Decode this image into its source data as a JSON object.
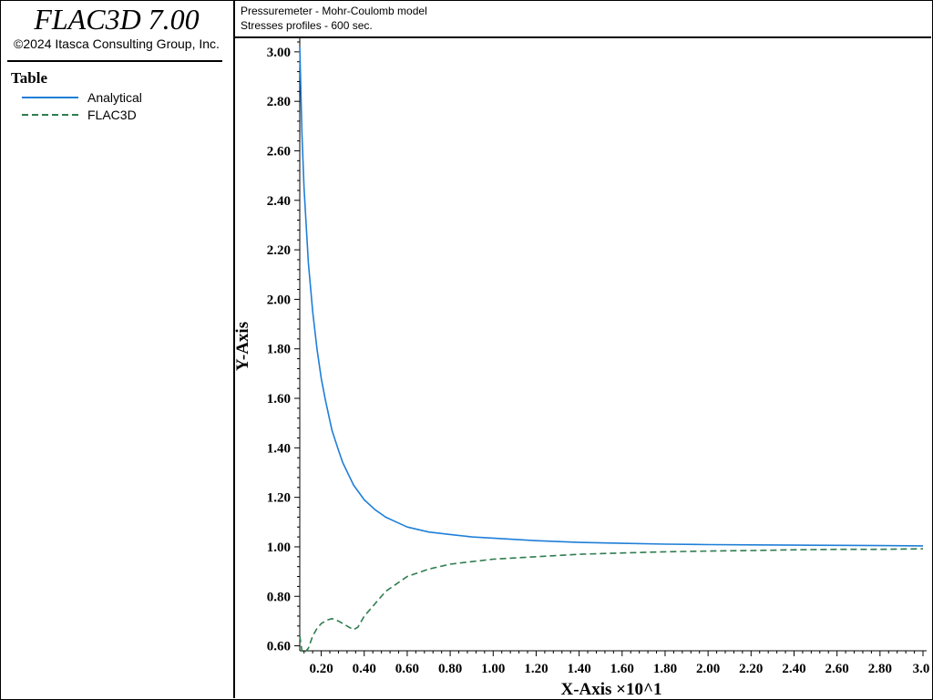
{
  "app": {
    "title": "FLAC3D 7.00",
    "copyright": "©2024 Itasca Consulting Group, Inc."
  },
  "header": {
    "line1": "Pressuremeter - Mohr-Coulomb model",
    "line2": "Stresses profiles - 600 sec."
  },
  "legend": {
    "title": "Table",
    "items": [
      {
        "label": "Analytical",
        "color": "#1f7fd8",
        "style": "solid"
      },
      {
        "label": "FLAC3D",
        "color": "#2e7d4f",
        "style": "dashed"
      }
    ]
  },
  "chart_data": {
    "type": "line",
    "xlabel": "X-Axis ×10^1",
    "ylabel": "Y-Axis",
    "xlim": [
      0.1,
      3.0
    ],
    "ylim": [
      0.58,
      3.04
    ],
    "xticks": [
      "0.20",
      "0.40",
      "0.60",
      "0.80",
      "1.00",
      "1.20",
      "1.40",
      "1.60",
      "1.80",
      "2.00",
      "2.20",
      "2.40",
      "2.60",
      "2.80",
      "3.0"
    ],
    "yticks": [
      "0.60",
      "0.80",
      "1.00",
      "1.20",
      "1.40",
      "1.60",
      "1.80",
      "2.00",
      "2.20",
      "2.40",
      "2.60",
      "2.80",
      "3.00"
    ],
    "grid": false,
    "legend_position": "left-panel",
    "series": [
      {
        "name": "Analytical",
        "color": "#1f7fd8",
        "style": "solid",
        "x": [
          0.1,
          0.11,
          0.12,
          0.14,
          0.16,
          0.18,
          0.2,
          0.22,
          0.25,
          0.28,
          0.3,
          0.35,
          0.4,
          0.45,
          0.5,
          0.55,
          0.6,
          0.7,
          0.8,
          0.9,
          1.0,
          1.2,
          1.4,
          1.6,
          1.8,
          2.0,
          2.2,
          2.4,
          2.6,
          2.8,
          3.0
        ],
        "y": [
          3.02,
          2.67,
          2.45,
          2.15,
          1.95,
          1.8,
          1.68,
          1.59,
          1.47,
          1.39,
          1.34,
          1.25,
          1.19,
          1.15,
          1.12,
          1.1,
          1.08,
          1.06,
          1.05,
          1.04,
          1.035,
          1.025,
          1.018,
          1.014,
          1.011,
          1.009,
          1.008,
          1.007,
          1.006,
          1.005,
          1.004
        ]
      },
      {
        "name": "FLAC3D",
        "color": "#2e7d4f",
        "style": "dashed",
        "x": [
          0.1,
          0.11,
          0.12,
          0.14,
          0.16,
          0.18,
          0.2,
          0.23,
          0.25,
          0.28,
          0.3,
          0.33,
          0.35,
          0.37,
          0.4,
          0.45,
          0.5,
          0.55,
          0.6,
          0.7,
          0.8,
          0.9,
          1.0,
          1.2,
          1.4,
          1.6,
          1.8,
          2.0,
          2.2,
          2.4,
          2.6,
          2.8,
          3.0
        ],
        "y": [
          0.64,
          0.58,
          0.57,
          0.59,
          0.64,
          0.67,
          0.69,
          0.705,
          0.71,
          0.7,
          0.69,
          0.675,
          0.665,
          0.675,
          0.72,
          0.77,
          0.82,
          0.85,
          0.88,
          0.91,
          0.93,
          0.94,
          0.95,
          0.96,
          0.97,
          0.975,
          0.98,
          0.983,
          0.985,
          0.988,
          0.99,
          0.99,
          0.992
        ]
      }
    ]
  }
}
